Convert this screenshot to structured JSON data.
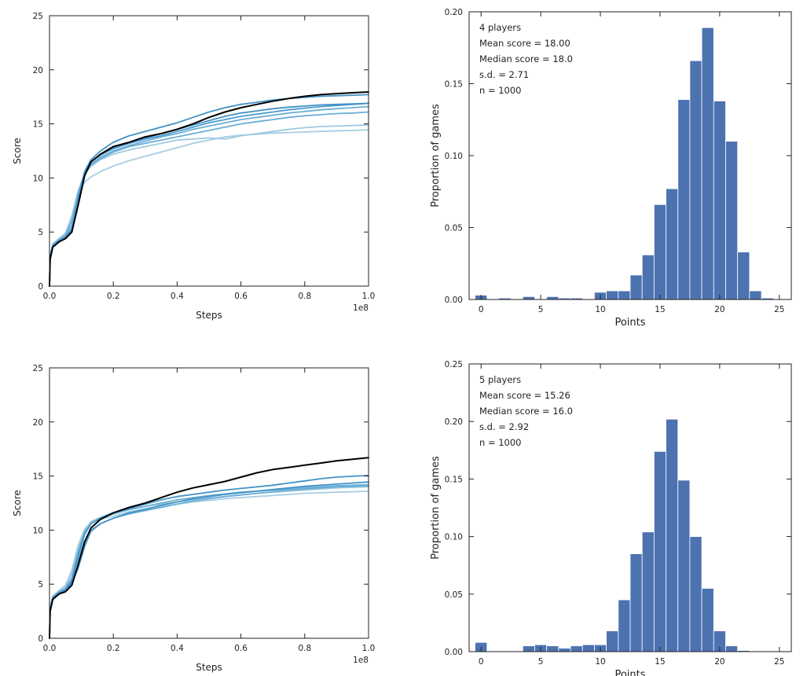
{
  "chart_data": [
    {
      "type": "line",
      "xlabel": "Steps",
      "ylabel": "Score",
      "offset_label": "1e8",
      "xlim": [
        0,
        1.0
      ],
      "ylim": [
        0,
        25
      ],
      "x_ticks": [
        "0.0",
        "0.2",
        "0.4",
        "0.6",
        "0.8",
        "1.0"
      ],
      "y_ticks": [
        "0",
        "5",
        "10",
        "15",
        "20",
        "25"
      ],
      "x": [
        0,
        0.002,
        0.01,
        0.03,
        0.05,
        0.07,
        0.09,
        0.11,
        0.13,
        0.16,
        0.2,
        0.25,
        0.3,
        0.35,
        0.4,
        0.45,
        0.5,
        0.55,
        0.6,
        0.65,
        0.7,
        0.75,
        0.8,
        0.85,
        0.9,
        0.95,
        1.0
      ],
      "series": [
        {
          "color": "#000000",
          "values": [
            0,
            2.5,
            3.6,
            4.1,
            4.4,
            5.0,
            7.5,
            10.2,
            11.5,
            12.2,
            12.9,
            13.3,
            13.8,
            14.1,
            14.5,
            15.0,
            15.6,
            16.1,
            16.5,
            16.8,
            17.1,
            17.35,
            17.55,
            17.7,
            17.8,
            17.88,
            17.95
          ]
        },
        {
          "color": "#4292c6",
          "values": [
            0,
            2.6,
            3.7,
            4.2,
            4.5,
            5.2,
            8.0,
            10.6,
            11.7,
            12.5,
            13.3,
            13.9,
            14.3,
            14.7,
            15.1,
            15.6,
            16.1,
            16.5,
            16.8,
            17.0,
            17.2,
            17.35,
            17.45,
            17.55,
            17.6,
            17.65,
            17.7
          ]
        },
        {
          "color": "#4292c6",
          "values": [
            0,
            2.5,
            3.6,
            4.1,
            4.4,
            5.1,
            7.8,
            10.3,
            11.5,
            12.2,
            12.8,
            13.3,
            13.7,
            14.1,
            14.5,
            14.9,
            15.3,
            15.7,
            16.0,
            16.2,
            16.4,
            16.55,
            16.65,
            16.75,
            16.8,
            16.85,
            16.9
          ]
        },
        {
          "color": "#4a9bd0",
          "values": [
            0,
            2.6,
            3.7,
            4.2,
            4.5,
            5.3,
            8.2,
            10.4,
            11.5,
            12.1,
            12.7,
            13.2,
            13.6,
            13.9,
            14.3,
            14.7,
            15.1,
            15.4,
            15.7,
            15.9,
            16.1,
            16.3,
            16.45,
            16.6,
            16.7,
            16.8,
            16.9
          ]
        },
        {
          "color": "#6baed6",
          "values": [
            0,
            2.7,
            3.8,
            4.3,
            4.7,
            6.0,
            8.6,
            10.5,
            11.3,
            11.9,
            12.5,
            13.0,
            13.4,
            13.8,
            14.1,
            14.5,
            14.8,
            15.1,
            15.4,
            15.6,
            15.8,
            16.0,
            16.15,
            16.3,
            16.4,
            16.5,
            16.6
          ]
        },
        {
          "color": "#6baed6",
          "values": [
            0,
            2.7,
            3.8,
            4.3,
            4.6,
            5.6,
            8.3,
            10.3,
            11.2,
            11.8,
            12.4,
            12.9,
            13.2,
            13.5,
            13.8,
            14.1,
            14.4,
            14.7,
            15.0,
            15.2,
            15.4,
            15.6,
            15.75,
            15.85,
            15.95,
            16.0,
            16.1
          ]
        },
        {
          "color": "#9ecae1",
          "values": [
            0,
            2.8,
            3.9,
            4.4,
            4.9,
            6.5,
            8.8,
            10.4,
            11.1,
            11.7,
            12.2,
            12.6,
            12.9,
            13.2,
            13.5,
            13.6,
            13.7,
            13.6,
            13.9,
            14.1,
            14.3,
            14.5,
            14.65,
            14.75,
            14.8,
            14.85,
            14.9
          ]
        },
        {
          "color": "#a6cde3",
          "values": [
            0,
            2.8,
            3.9,
            4.4,
            4.8,
            6.3,
            8.5,
            9.6,
            10.1,
            10.6,
            11.1,
            11.6,
            12.0,
            12.4,
            12.8,
            13.2,
            13.5,
            13.8,
            13.95,
            14.05,
            14.15,
            14.2,
            14.25,
            14.3,
            14.35,
            14.4,
            14.45
          ]
        }
      ]
    },
    {
      "type": "bar",
      "xlabel": "Points",
      "ylabel": "Proportion of games",
      "xlim": [
        -1,
        26
      ],
      "ylim": [
        0,
        0.2
      ],
      "x_ticks": [
        "0",
        "5",
        "10",
        "15",
        "20",
        "25"
      ],
      "y_ticks": [
        "0.00",
        "0.05",
        "0.10",
        "0.15",
        "0.20"
      ],
      "color": "#4c72b0",
      "annotations": [
        "4 players",
        "Mean score = 18.00",
        "Median score = 18.0",
        "s.d. = 2.71",
        "n = 1000"
      ],
      "categories": [
        0,
        1,
        2,
        3,
        4,
        5,
        6,
        7,
        8,
        9,
        10,
        11,
        12,
        13,
        14,
        15,
        16,
        17,
        18,
        19,
        20,
        21,
        22,
        23,
        24
      ],
      "values": [
        0.003,
        0,
        0.001,
        0,
        0.002,
        0,
        0.002,
        0.001,
        0.001,
        0,
        0.005,
        0.006,
        0.006,
        0.017,
        0.031,
        0.066,
        0.077,
        0.139,
        0.166,
        0.189,
        0.138,
        0.11,
        0.033,
        0.006,
        0.001
      ]
    },
    {
      "type": "line",
      "xlabel": "Steps",
      "ylabel": "Score",
      "offset_label": "1e8",
      "xlim": [
        0,
        1.0
      ],
      "ylim": [
        0,
        25
      ],
      "x_ticks": [
        "0.0",
        "0.2",
        "0.4",
        "0.6",
        "0.8",
        "1.0"
      ],
      "y_ticks": [
        "0",
        "5",
        "10",
        "15",
        "20",
        "25"
      ],
      "x": [
        0,
        0.002,
        0.01,
        0.03,
        0.05,
        0.07,
        0.09,
        0.11,
        0.13,
        0.16,
        0.2,
        0.25,
        0.3,
        0.35,
        0.4,
        0.45,
        0.5,
        0.55,
        0.6,
        0.65,
        0.7,
        0.75,
        0.8,
        0.85,
        0.9,
        0.95,
        1.0
      ],
      "series": [
        {
          "color": "#000000",
          "values": [
            0,
            2.5,
            3.6,
            4.1,
            4.3,
            4.9,
            6.8,
            8.9,
            10.2,
            11.0,
            11.6,
            12.1,
            12.5,
            13.0,
            13.5,
            13.9,
            14.2,
            14.5,
            14.9,
            15.3,
            15.6,
            15.8,
            16.0,
            16.2,
            16.4,
            16.55,
            16.7
          ]
        },
        {
          "color": "#4292c6",
          "values": [
            0,
            2.6,
            3.7,
            4.2,
            4.5,
            5.3,
            7.6,
            9.6,
            10.6,
            11.1,
            11.6,
            12.0,
            12.4,
            12.8,
            13.1,
            13.3,
            13.5,
            13.7,
            13.85,
            14.0,
            14.15,
            14.35,
            14.55,
            14.75,
            14.9,
            14.98,
            15.05
          ]
        },
        {
          "color": "#4292c6",
          "values": [
            0,
            2.5,
            3.6,
            4.1,
            4.4,
            5.1,
            6.5,
            8.5,
            9.9,
            10.6,
            11.1,
            11.6,
            11.9,
            12.3,
            12.6,
            12.9,
            13.1,
            13.3,
            13.45,
            13.6,
            13.75,
            13.9,
            14.05,
            14.15,
            14.25,
            14.35,
            14.45
          ]
        },
        {
          "color": "#6baed6",
          "values": [
            0,
            2.7,
            3.8,
            4.3,
            4.6,
            5.6,
            8.0,
            9.8,
            10.6,
            11.1,
            11.5,
            11.9,
            12.2,
            12.5,
            12.8,
            13.0,
            13.2,
            13.35,
            13.5,
            13.6,
            13.7,
            13.8,
            13.9,
            14.0,
            14.1,
            14.15,
            14.2
          ]
        },
        {
          "color": "#6baed6",
          "values": [
            0,
            2.6,
            3.7,
            4.2,
            4.5,
            5.4,
            7.2,
            9.0,
            10.0,
            10.6,
            11.1,
            11.5,
            11.8,
            12.1,
            12.4,
            12.7,
            12.9,
            13.1,
            13.25,
            13.4,
            13.55,
            13.7,
            13.8,
            13.9,
            14.0,
            14.05,
            14.1
          ]
        },
        {
          "color": "#9ecae1",
          "values": [
            0,
            2.8,
            3.9,
            4.4,
            4.8,
            6.0,
            8.4,
            10.0,
            10.8,
            11.2,
            11.6,
            11.9,
            12.2,
            12.4,
            12.6,
            12.8,
            12.95,
            13.1,
            13.25,
            13.4,
            13.5,
            13.6,
            13.7,
            13.8,
            13.9,
            13.95,
            14.0
          ]
        },
        {
          "color": "#a6cde3",
          "values": [
            0,
            2.8,
            3.9,
            4.4,
            4.9,
            6.3,
            8.6,
            10.1,
            10.7,
            11.0,
            11.3,
            11.7,
            12.0,
            12.2,
            12.4,
            12.6,
            12.75,
            12.9,
            13.0,
            13.1,
            13.2,
            13.3,
            13.4,
            13.45,
            13.5,
            13.55,
            13.6
          ]
        }
      ]
    },
    {
      "type": "bar",
      "xlabel": "Points",
      "ylabel": "Proportion of games",
      "xlim": [
        -1,
        26
      ],
      "ylim": [
        0,
        0.25
      ],
      "x_ticks": [
        "0",
        "5",
        "10",
        "15",
        "20",
        "25"
      ],
      "y_ticks": [
        "0.00",
        "0.05",
        "0.10",
        "0.15",
        "0.20",
        "0.25"
      ],
      "color": "#4c72b0",
      "annotations": [
        "5 players",
        "Mean score = 15.26",
        "Median score = 16.0",
        "s.d. = 2.92",
        "n = 1000"
      ],
      "categories": [
        0,
        1,
        2,
        3,
        4,
        5,
        6,
        7,
        8,
        9,
        10,
        11,
        12,
        13,
        14,
        15,
        16,
        17,
        18,
        19,
        20,
        21,
        22,
        23,
        24
      ],
      "values": [
        0.008,
        0,
        0,
        0,
        0.005,
        0.006,
        0.005,
        0.003,
        0.005,
        0.006,
        0.006,
        0.018,
        0.045,
        0.085,
        0.104,
        0.174,
        0.202,
        0.149,
        0.1,
        0.055,
        0.018,
        0.005,
        0.001,
        0,
        0
      ]
    }
  ]
}
